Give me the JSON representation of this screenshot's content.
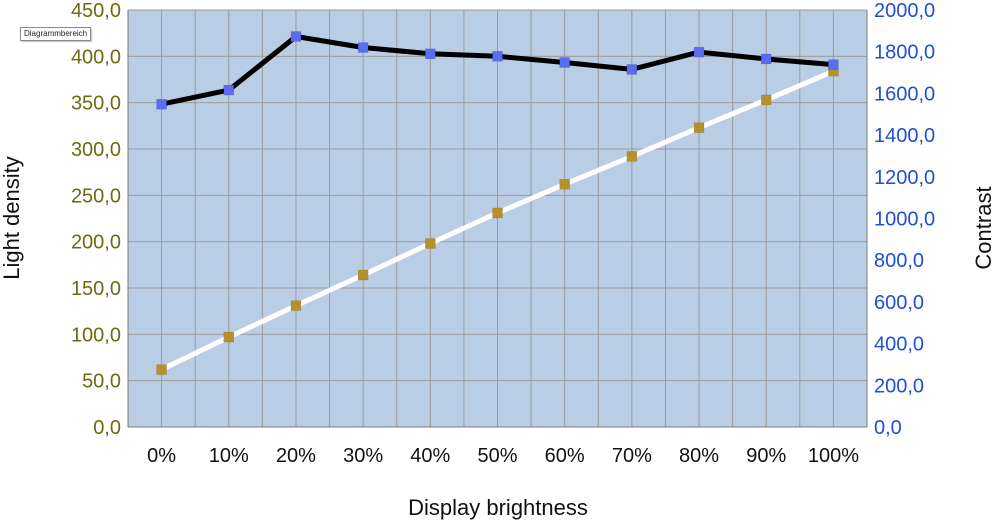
{
  "tooltip": "Diagrammbereich",
  "chart_data": {
    "type": "line",
    "title": "",
    "xlabel": "Display brightness",
    "ylabel": "Light density",
    "y2label": "Contrast",
    "categories": [
      "0%",
      "10%",
      "20%",
      "30%",
      "40%",
      "50%",
      "60%",
      "70%",
      "80%",
      "90%",
      "100%"
    ],
    "ylim": [
      0,
      450
    ],
    "y2lim": [
      0,
      2000
    ],
    "yticks": [
      "0,0",
      "50,0",
      "100,0",
      "150,0",
      "200,0",
      "250,0",
      "300,0",
      "350,0",
      "400,0",
      "450,0"
    ],
    "y2ticks": [
      "0,0",
      "200,0",
      "400,0",
      "600,0",
      "800,0",
      "1000,0",
      "1200,0",
      "1400,0",
      "1600,0",
      "1800,0",
      "2000,0"
    ],
    "grid": true,
    "series": [
      {
        "axis": "right",
        "line_color": "#000000",
        "marker_color": "#5a6cf0",
        "values": [
          1548,
          1616,
          1873,
          1820,
          1790,
          1778,
          1748,
          1715,
          1798,
          1765,
          1738
        ]
      },
      {
        "axis": "left",
        "line_color": "#ffffff",
        "marker_color": "#b8902a",
        "values": [
          62,
          97,
          131,
          164,
          198,
          231,
          262,
          292,
          323,
          353,
          384
        ]
      }
    ],
    "plot_background": "#b9cde4",
    "grid_color": "#9b9b9b",
    "left_axis_color": "#6b6b12",
    "right_axis_color": "#1f4fd6"
  }
}
